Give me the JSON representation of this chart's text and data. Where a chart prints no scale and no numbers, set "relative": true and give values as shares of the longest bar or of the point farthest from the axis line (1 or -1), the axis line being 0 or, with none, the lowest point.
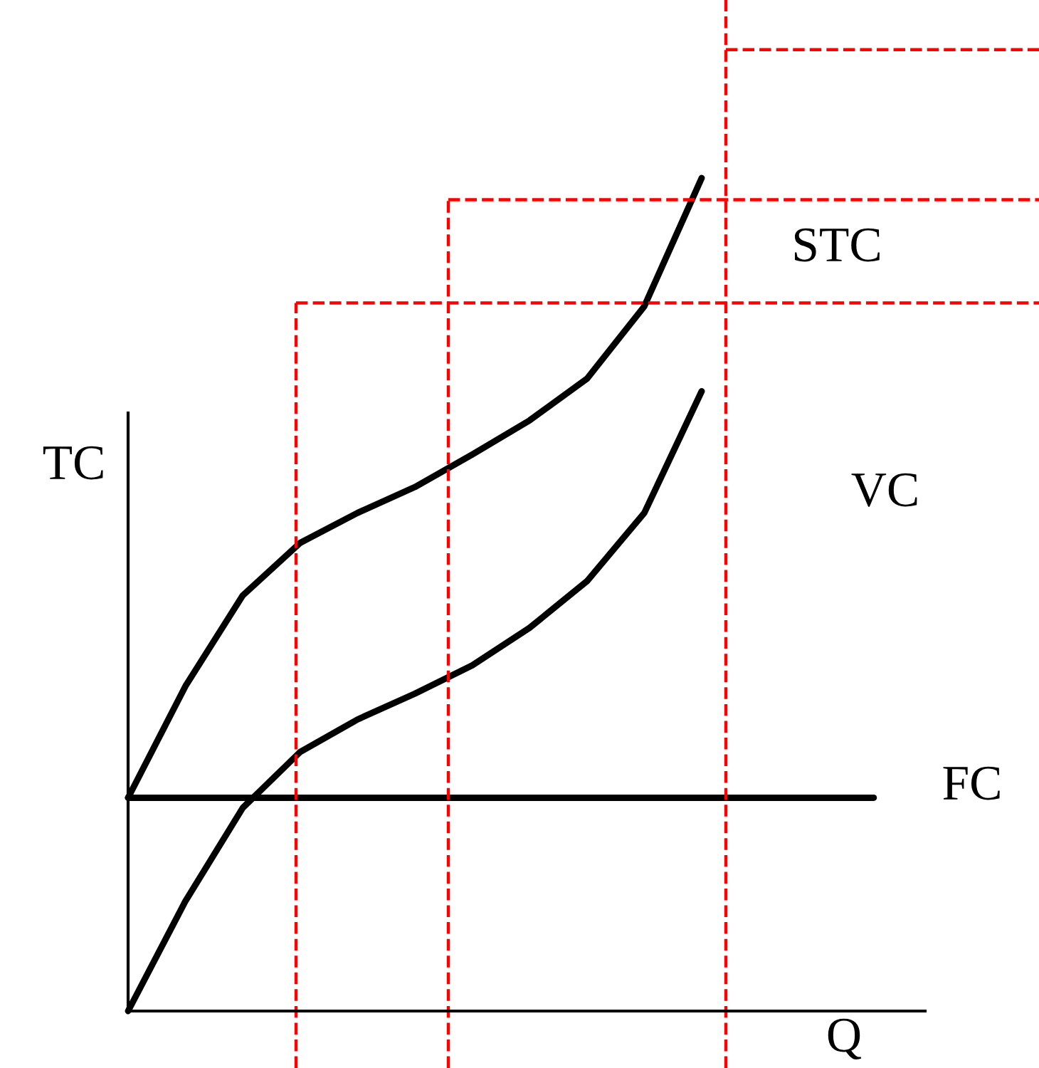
{
  "chart_data": {
    "type": "line",
    "relative": true,
    "ylabel": "TC",
    "xlabel": "Q",
    "categories": [
      null,
      null,
      null,
      null,
      null,
      null,
      null,
      null,
      null,
      null,
      null,
      null,
      null,
      null
    ],
    "series": [
      {
        "name": "STC",
        "color": "#000000",
        "values": [
          0.256,
          0.39,
          0.499,
          0.562,
          0.598,
          0.629,
          0.668,
          0.709,
          0.759,
          0.846,
          1.0,
          null,
          null,
          null
        ]
      },
      {
        "name": "VC",
        "color": "#000000",
        "values": [
          0,
          0.132,
          0.244,
          0.311,
          0.35,
          0.381,
          0.415,
          0.46,
          0.516,
          0.598,
          0.744,
          null,
          null,
          null
        ]
      },
      {
        "name": "FC",
        "color": "#000000",
        "values": [
          0.256,
          0.256,
          0.256,
          0.256,
          0.256,
          0.256,
          0.256,
          0.256,
          0.256,
          0.256,
          0.256,
          0.256,
          0.256,
          0.256
        ]
      }
    ],
    "ref_lines": [
      {
        "axis": "y",
        "value": 0.85,
        "color": "#ff0000",
        "line_style": "dashed"
      },
      {
        "axis": "y",
        "value": 0.974,
        "color": "#ff0000",
        "line_style": "dashed"
      },
      {
        "axis": "y",
        "value": 1.154,
        "color": "#ff0000",
        "line_style": "dashed"
      }
    ],
    "marker": "none",
    "line_style": "solid"
  }
}
